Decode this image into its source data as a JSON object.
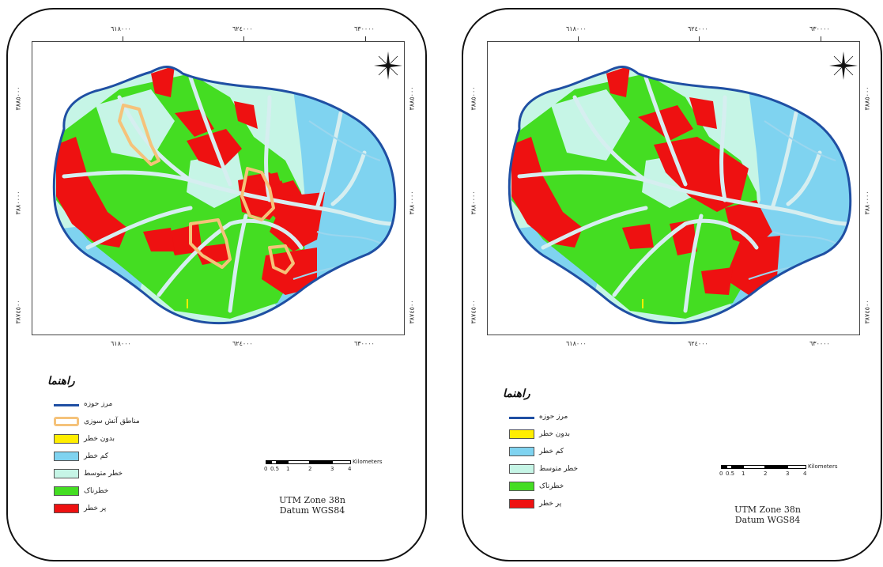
{
  "maps": [
    {
      "id": "left",
      "x_ticks": [
        "٦١٨٠٠٠",
        "٦٢٤٠٠٠",
        "٦٣٠٠٠٠"
      ],
      "y_ticks": [
        "٣٨٨٥٠٠٠",
        "٣٨٨٠٠٠٠",
        "٣٨٧٤٥٠٠"
      ],
      "legend_title": "راهنما",
      "legend": [
        {
          "label": "مرز حوزه",
          "kind": "line",
          "color": "#1f4fa3"
        },
        {
          "label": "مناطق آتش سوزی",
          "kind": "outline",
          "color": "#f5c27a"
        },
        {
          "label": "بدون خطر",
          "kind": "fill",
          "color": "#ffee00"
        },
        {
          "label": "کم خطر",
          "kind": "fill",
          "color": "#7fd3f0"
        },
        {
          "label": "خطر متوسط",
          "kind": "fill",
          "color": "#c6f5e6"
        },
        {
          "label": "خطرناک",
          "kind": "fill",
          "color": "#44dd22"
        },
        {
          "label": "پر خطر",
          "kind": "fill",
          "color": "#ee1111"
        }
      ],
      "scale_labels": [
        "0",
        "0.5",
        "1",
        "2",
        "3",
        "4"
      ],
      "scale_unit": "Kilometers",
      "zone": "UTM Zone 38n",
      "datum": "Datum WGS84"
    },
    {
      "id": "right",
      "x_ticks": [
        "٦١٨٠٠٠",
        "٦٢٤٠٠٠",
        "٦٣٠٠٠٠"
      ],
      "y_ticks": [
        "٣٨٨٥٠٠٠",
        "٣٨٨٠٠٠٠",
        "٣٨٧٤٥٠٠"
      ],
      "legend_title": "راهنما",
      "legend": [
        {
          "label": "مرز حوزه",
          "kind": "line",
          "color": "#1f4fa3"
        },
        {
          "label": "بدون خطر",
          "kind": "fill",
          "color": "#ffee00"
        },
        {
          "label": "کم خطر",
          "kind": "fill",
          "color": "#7fd3f0"
        },
        {
          "label": "خطر متوسط",
          "kind": "fill",
          "color": "#c6f5e6"
        },
        {
          "label": "خطرناک",
          "kind": "fill",
          "color": "#44dd22"
        },
        {
          "label": "پر خطر",
          "kind": "fill",
          "color": "#ee1111"
        }
      ],
      "scale_labels": [
        "0",
        "0.5",
        "1",
        "2",
        "3",
        "4"
      ],
      "scale_unit": "Kilometers",
      "zone": "UTM Zone 38n",
      "datum": "Datum WGS84"
    }
  ],
  "colors": {
    "boundary": "#1f4fa3",
    "fire_outline": "#f5c27a",
    "no_risk": "#ffee00",
    "low_risk": "#7fd3f0",
    "medium_risk": "#c6f5e6",
    "dangerous": "#44dd22",
    "high_risk": "#ee1111",
    "streams": "#d6eef0"
  },
  "icons": [
    "north-arrow-icon"
  ]
}
